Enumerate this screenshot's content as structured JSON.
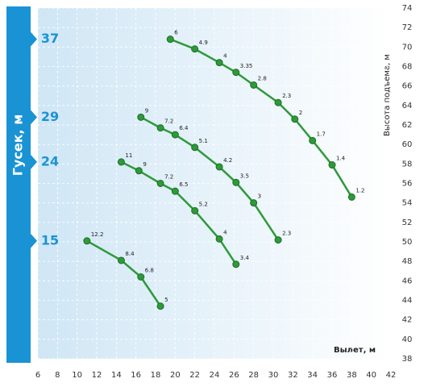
{
  "chart_data": {
    "type": "line",
    "boom_label": "Гусек, м",
    "xlabel": "Вылет, м",
    "ylabel": "Высота подъема, м",
    "xlim": [
      6,
      42
    ],
    "xticks": [
      6,
      8,
      10,
      12,
      14,
      16,
      18,
      20,
      22,
      24,
      26,
      28,
      30,
      32,
      34,
      36,
      38,
      40,
      42
    ],
    "ylim": [
      38,
      74
    ],
    "yticks": [
      38,
      40,
      42,
      44,
      46,
      48,
      50,
      52,
      54,
      56,
      58,
      60,
      62,
      64,
      66,
      68,
      70,
      72,
      74
    ],
    "grid": true,
    "color": "#2e9a3a",
    "series": [
      {
        "name": "37",
        "x": [
          19.5,
          22,
          24.5,
          26.2,
          28,
          30.5,
          32.2,
          34,
          36,
          38
        ],
        "values": [
          70.8,
          69.8,
          68.4,
          67.4,
          66.1,
          64.3,
          62.6,
          60.4,
          57.9,
          54.6
        ],
        "loads": [
          6,
          4.9,
          4,
          3.35,
          2.8,
          2.3,
          2,
          1.7,
          1.4,
          1.2
        ]
      },
      {
        "name": "29",
        "x": [
          16.5,
          18.5,
          20,
          22,
          24.5,
          26.2,
          28,
          30.5
        ],
        "values": [
          62.8,
          61.7,
          61,
          59.7,
          57.7,
          56.1,
          54,
          50.2
        ],
        "loads": [
          9,
          7.2,
          6.4,
          5.1,
          4.2,
          3.5,
          3,
          2.3
        ]
      },
      {
        "name": "24",
        "x": [
          14.5,
          16.3,
          18.5,
          20,
          22,
          24.5,
          26.2
        ],
        "values": [
          58.2,
          57.3,
          56,
          55.2,
          53.2,
          50.3,
          47.7
        ],
        "loads": [
          11,
          9,
          7.2,
          6.5,
          5.2,
          4,
          3.4
        ]
      },
      {
        "name": "15",
        "x": [
          11,
          14.5,
          16.5,
          18.5
        ],
        "values": [
          50.1,
          48.1,
          46.4,
          43.4
        ],
        "loads": [
          12.2,
          8.4,
          6.8,
          5
        ]
      }
    ]
  }
}
